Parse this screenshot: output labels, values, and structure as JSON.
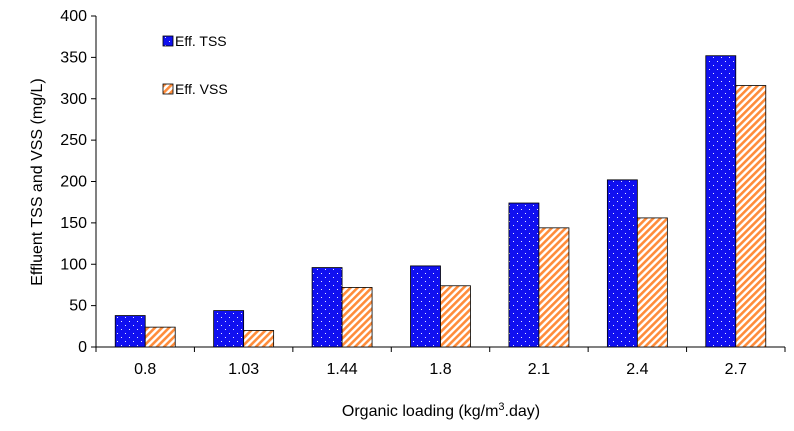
{
  "chart_data": {
    "type": "bar",
    "title": "",
    "xlabel": "Organic loading (kg/m",
    "xlabel_sup": "3",
    "xlabel_suffix": ".day)",
    "ylabel": "Effluent TSS and VSS (mg/L)",
    "ylim": [
      0,
      400
    ],
    "yticks": [
      "0",
      "50",
      "100",
      "150",
      "200",
      "250",
      "300",
      "350",
      "400"
    ],
    "categories": [
      "0.8",
      "1.03",
      "1.44",
      "1.8",
      "2.1",
      "2.4",
      "2.7"
    ],
    "series": [
      {
        "name": "Eff. TSS",
        "values": [
          38,
          44,
          96,
          98,
          174,
          202,
          352
        ],
        "color": "#1010f0",
        "pattern": "dots"
      },
      {
        "name": "Eff. VSS",
        "values": [
          24,
          20,
          72,
          74,
          144,
          156,
          316
        ],
        "color": "#ff8c3a",
        "pattern": "diagonal-stripes"
      }
    ],
    "legend_position": "top-left",
    "grid": false
  }
}
